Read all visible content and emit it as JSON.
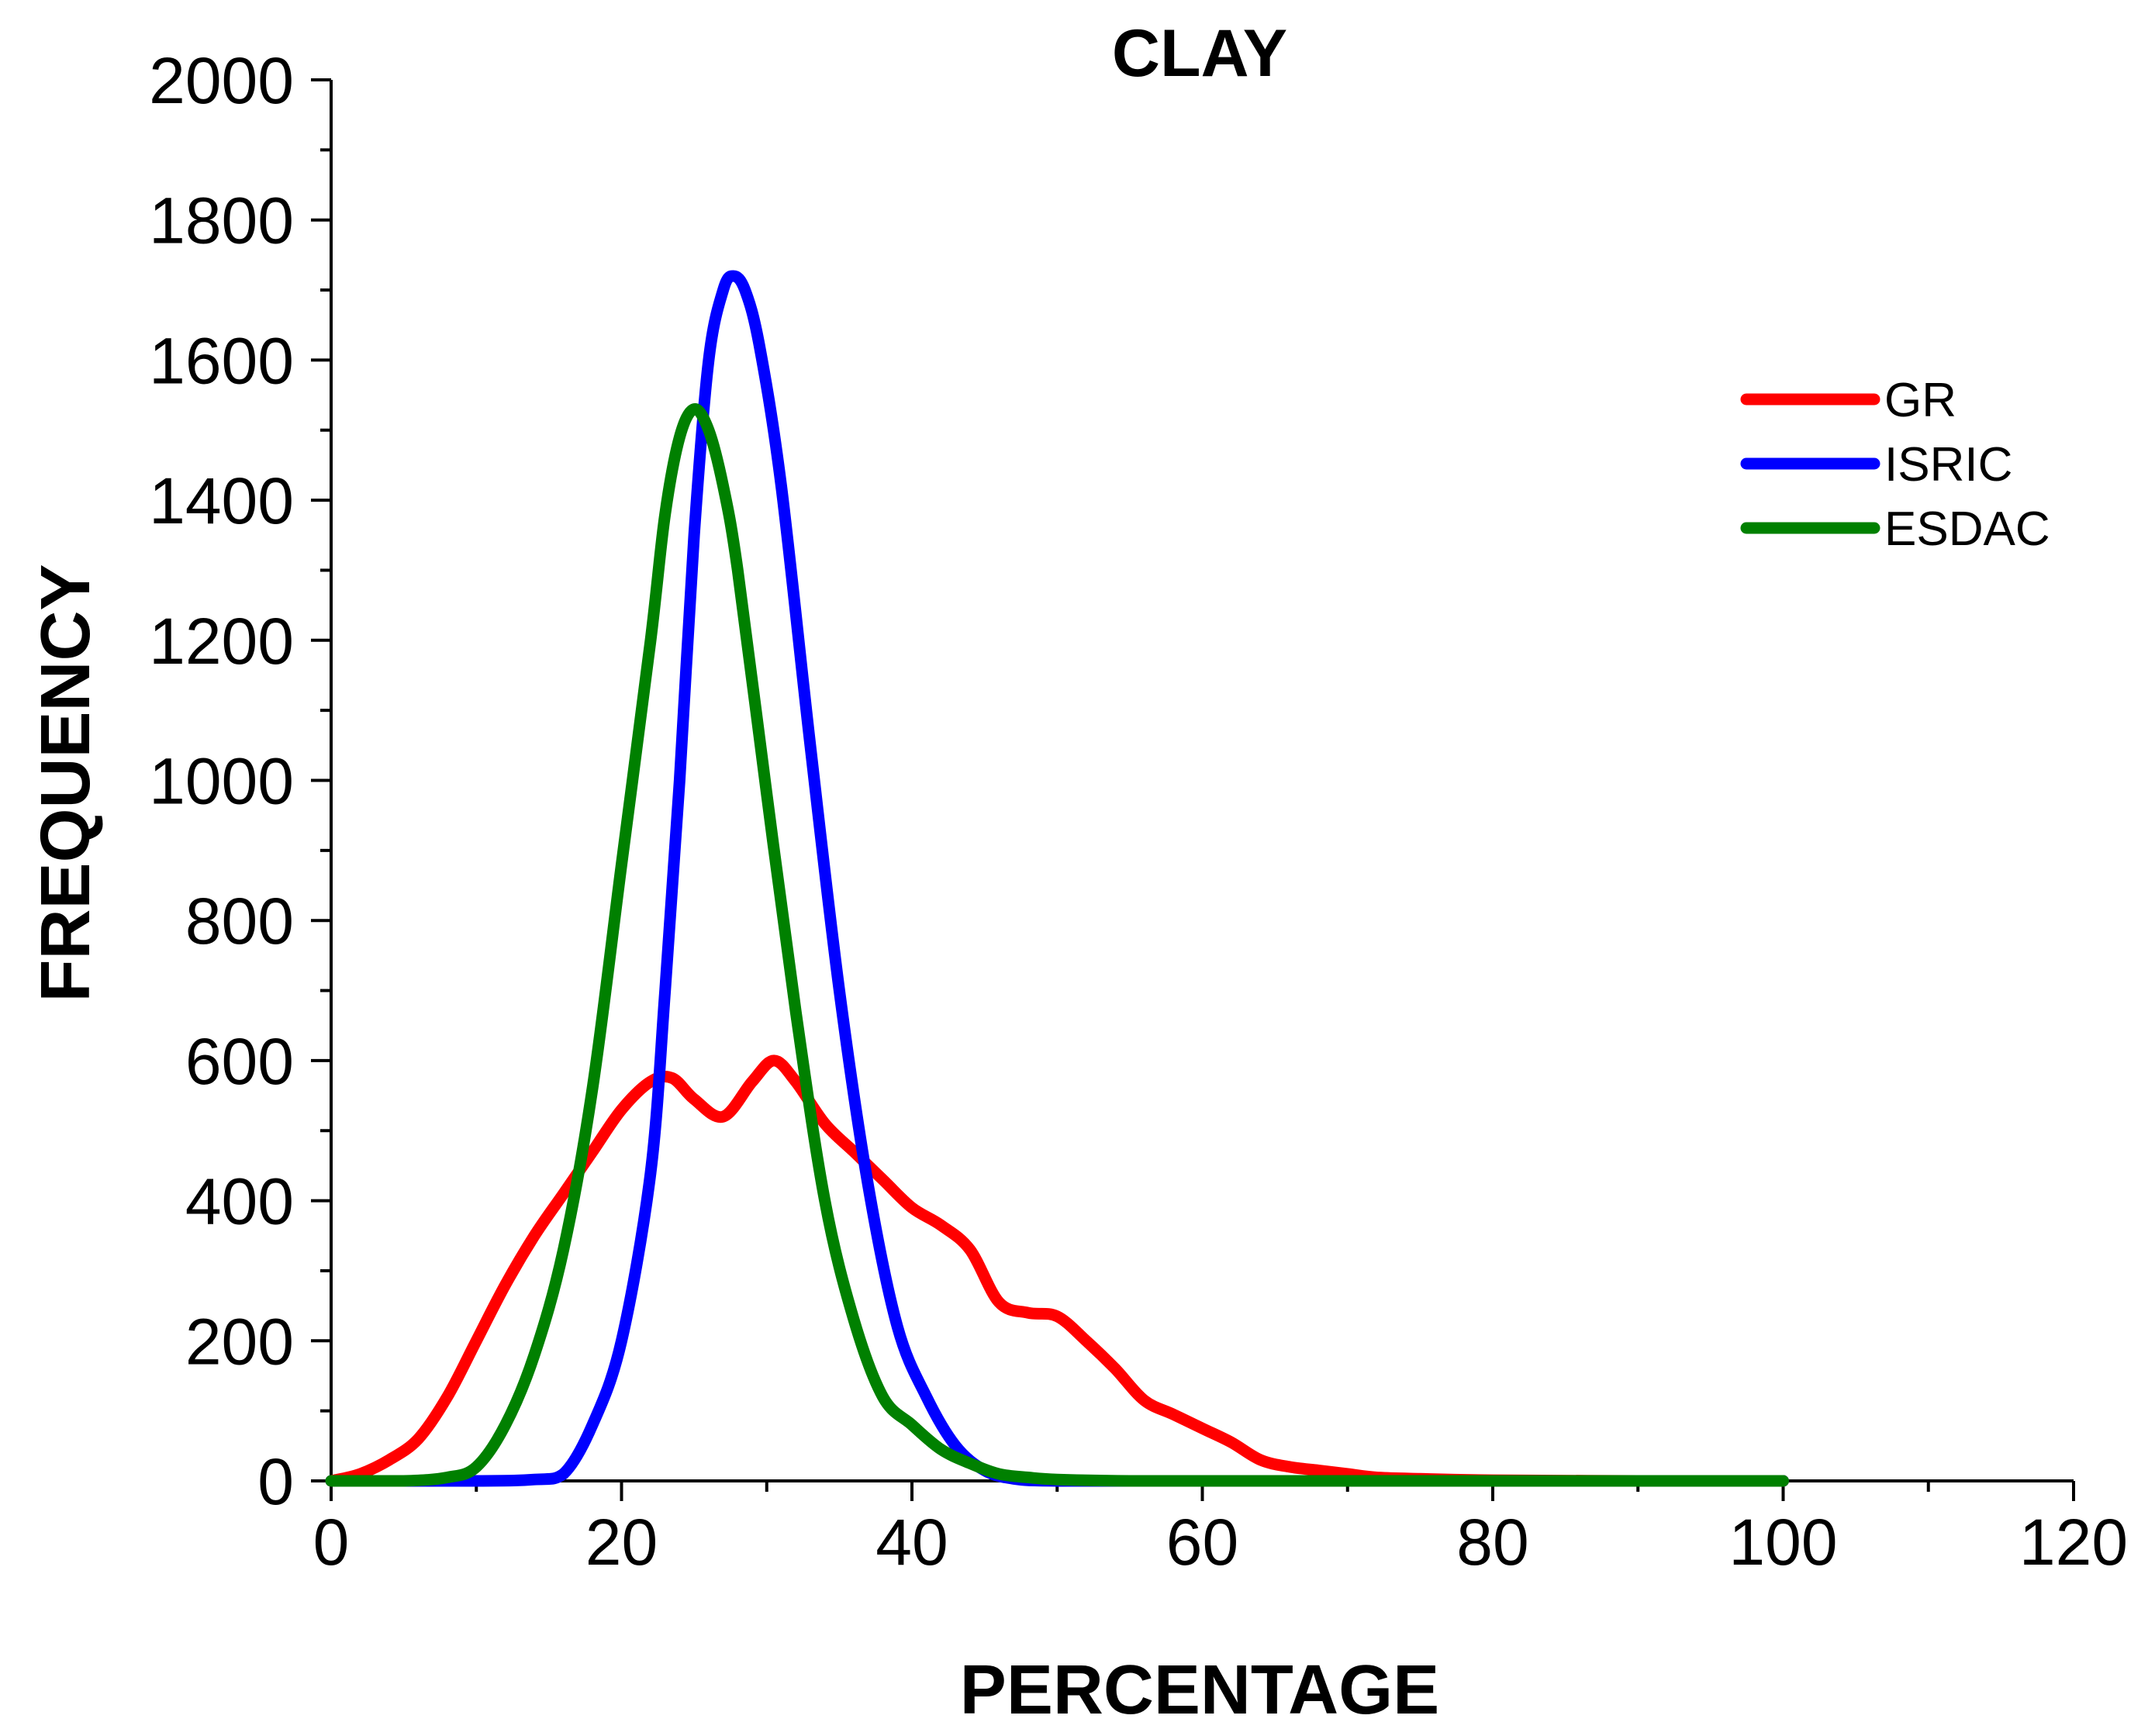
{
  "chart_data": {
    "type": "line",
    "title": "CLAY",
    "xlabel": "PERCENTAGE",
    "ylabel": "FREQUENCY",
    "xlim": [
      0,
      120
    ],
    "ylim": [
      0,
      2000
    ],
    "xticks": [
      0,
      20,
      40,
      60,
      80,
      100,
      120
    ],
    "yticks": [
      0,
      200,
      400,
      600,
      800,
      1000,
      1200,
      1400,
      1600,
      1800,
      2000
    ],
    "xtick_labels": [
      "0",
      "20",
      "40",
      "60",
      "80",
      "100",
      "120"
    ],
    "ytick_labels": [
      "0",
      "200",
      "400",
      "600",
      "800",
      "1000",
      "1200",
      "1400",
      "1600",
      "1800",
      "2000"
    ],
    "x_minor_step": 10,
    "y_minor_step": 100,
    "grid": false,
    "legend_position": "top-right",
    "series": [
      {
        "name": "GR",
        "color": "#ff0000",
        "x": [
          0,
          2,
          4,
          6,
          8,
          10,
          12,
          14,
          16,
          18,
          20,
          22,
          23.5,
          25,
          27,
          29,
          30.5,
          32,
          34,
          36,
          38,
          40,
          42,
          44,
          46,
          48,
          50,
          52,
          54,
          56,
          58,
          60,
          62,
          64,
          66,
          68,
          70,
          72,
          75,
          80,
          90,
          100
        ],
        "y": [
          0,
          10,
          30,
          60,
          120,
          200,
          280,
          350,
          410,
          470,
          530,
          570,
          575,
          545,
          520,
          570,
          600,
          570,
          510,
          470,
          430,
          390,
          365,
          330,
          255,
          240,
          235,
          200,
          160,
          115,
          95,
          75,
          55,
          30,
          20,
          15,
          10,
          5,
          3,
          1,
          0,
          0
        ]
      },
      {
        "name": "ISRIC",
        "color": "#0000ff",
        "x": [
          0,
          10,
          14,
          16,
          18,
          20,
          22,
          23,
          24,
          25,
          26,
          27,
          27.7,
          28.5,
          29.5,
          31,
          33,
          35,
          37,
          39,
          41,
          43,
          45,
          47,
          50,
          60,
          100
        ],
        "y": [
          0,
          0,
          2,
          10,
          80,
          200,
          440,
          700,
          1000,
          1350,
          1600,
          1700,
          1720,
          1700,
          1620,
          1420,
          1050,
          700,
          420,
          220,
          120,
          50,
          15,
          3,
          0,
          0,
          0
        ]
      },
      {
        "name": "ESDAC",
        "color": "#008000",
        "x": [
          0,
          5,
          8,
          10,
          12,
          14,
          16,
          18,
          20,
          22,
          23,
          24,
          25,
          26,
          27,
          28,
          30,
          32,
          34,
          36,
          38,
          40,
          42,
          44,
          46,
          48,
          50,
          55,
          60,
          100
        ],
        "y": [
          0,
          0,
          5,
          20,
          80,
          180,
          330,
          560,
          880,
          1200,
          1380,
          1490,
          1530,
          1500,
          1420,
          1300,
          980,
          670,
          400,
          230,
          120,
          80,
          45,
          25,
          10,
          5,
          2,
          0,
          0,
          0
        ]
      }
    ]
  }
}
